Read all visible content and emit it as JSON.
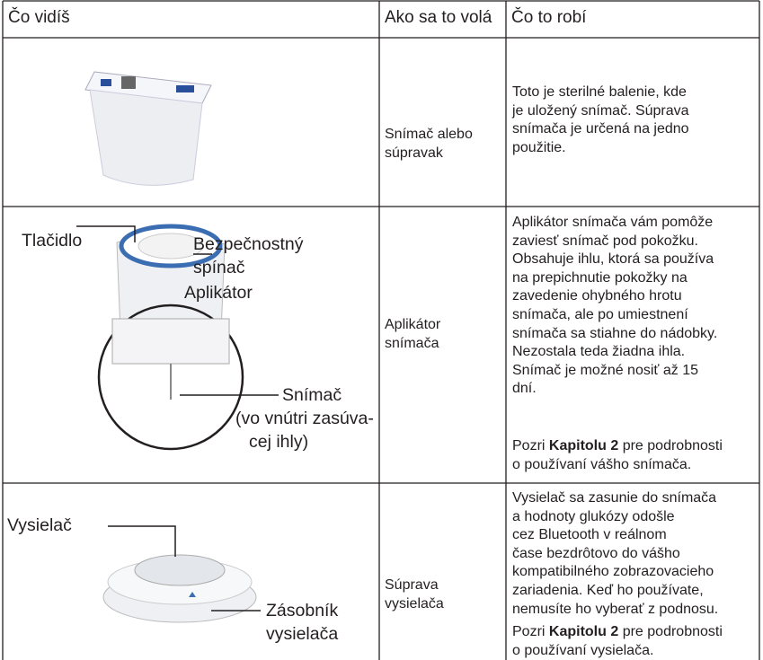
{
  "table": {
    "header": [
      "Čo vidíš",
      "Ako sa to volá",
      "Čo to robí"
    ],
    "rows": [
      {
        "name": [
          "Snímač alebo",
          "súpravak"
        ],
        "description": [
          "Toto je sterilné balenie, kde",
          "je uložený snímač. Súprava",
          "snímača je určená na jedno",
          "použitie."
        ],
        "image_labels": []
      },
      {
        "name": [
          "Aplikátor",
          "snímača"
        ],
        "description": [
          "Aplikátor snímača vám pomôže",
          "zaviesť snímač pod pokožku.",
          "Obsahuje ihlu, ktorá sa používa",
          "na prepichnutie pokožky na",
          "zavedenie ohybného hrotu",
          "snímača, ale po umiestnení",
          "snímača sa stiahne do nádobky.",
          "Nezostala teda žiadna ihla.",
          "Snímač je možné nosiť až 15",
          "dní."
        ],
        "note": {
          "before": "Pozri",
          "bold": "Kapitolu 2",
          "after": "pre podrobnosti",
          "line2": "o používaní vášho snímača."
        },
        "image_labels": [
          "Tlačidlo",
          "Bezpečnostný",
          "spínač",
          "Aplikátor",
          "Snímač",
          "(vo vnútri zasúva-",
          "cej ihly)"
        ]
      },
      {
        "name": [
          "Súprava",
          "vysielača"
        ],
        "description": [
          "Vysielač sa zasunie do snímača",
          "a hodnoty glukózy odošle",
          "cez Bluetooth v reálnom",
          "čase bezdrôtovo do vášho",
          "kompatibilného zobrazovacieho",
          "zariadenia. Keď ho používate,",
          "nemusíte ho vyberať z podnosu."
        ],
        "note": {
          "before": "Pozri",
          "bold": "Kapitolu 2",
          "after": "pre podrobnosti",
          "line2": "o používaní vysielača."
        },
        "image_labels": [
          "Vysielač",
          "Zásobník",
          "vysielača"
        ]
      }
    ]
  }
}
